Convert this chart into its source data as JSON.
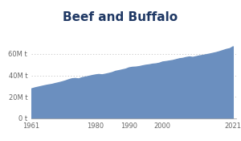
{
  "title": "Beef and Buffalo",
  "title_fontsize": 11,
  "title_fontweight": "bold",
  "title_color": "#1f3864",
  "fill_color": "#6b8fbf",
  "line_color": "#6b8fbf",
  "background_color": "#ffffff",
  "xlim": [
    1961,
    2022
  ],
  "ylim": [
    0,
    72000000
  ],
  "yticks": [
    0,
    20000000,
    40000000,
    60000000
  ],
  "ytick_labels": [
    "0 t",
    "20M t",
    "40M t",
    "60M t"
  ],
  "xticks": [
    1961,
    1980,
    1990,
    2000,
    2021
  ],
  "xtick_labels": [
    "1961",
    "1980",
    "1990",
    "2000",
    "2021"
  ],
  "grid_color": "#bbbbbb",
  "years": [
    1961,
    1962,
    1963,
    1964,
    1965,
    1966,
    1967,
    1968,
    1969,
    1970,
    1971,
    1972,
    1973,
    1974,
    1975,
    1976,
    1977,
    1978,
    1979,
    1980,
    1981,
    1982,
    1983,
    1984,
    1985,
    1986,
    1987,
    1988,
    1989,
    1990,
    1991,
    1992,
    1993,
    1994,
    1995,
    1996,
    1997,
    1998,
    1999,
    2000,
    2001,
    2002,
    2003,
    2004,
    2005,
    2006,
    2007,
    2008,
    2009,
    2010,
    2011,
    2012,
    2013,
    2014,
    2015,
    2016,
    2017,
    2018,
    2019,
    2020,
    2021
  ],
  "values": [
    27900000,
    28800000,
    29500000,
    30200000,
    30900000,
    31500000,
    32000000,
    32800000,
    33500000,
    34300000,
    35200000,
    36300000,
    37200000,
    37500000,
    37100000,
    38200000,
    38800000,
    39500000,
    40200000,
    40800000,
    41200000,
    40900000,
    41500000,
    42200000,
    43000000,
    44200000,
    44800000,
    45500000,
    46200000,
    47400000,
    47900000,
    48100000,
    48500000,
    49200000,
    49800000,
    50200000,
    50800000,
    51100000,
    51700000,
    52800000,
    53200000,
    53700000,
    54200000,
    55000000,
    55800000,
    56200000,
    57000000,
    57500000,
    57100000,
    57800000,
    58500000,
    59000000,
    59600000,
    60200000,
    60900000,
    61600000,
    62500000,
    63500000,
    64500000,
    65200000,
    67000000
  ]
}
